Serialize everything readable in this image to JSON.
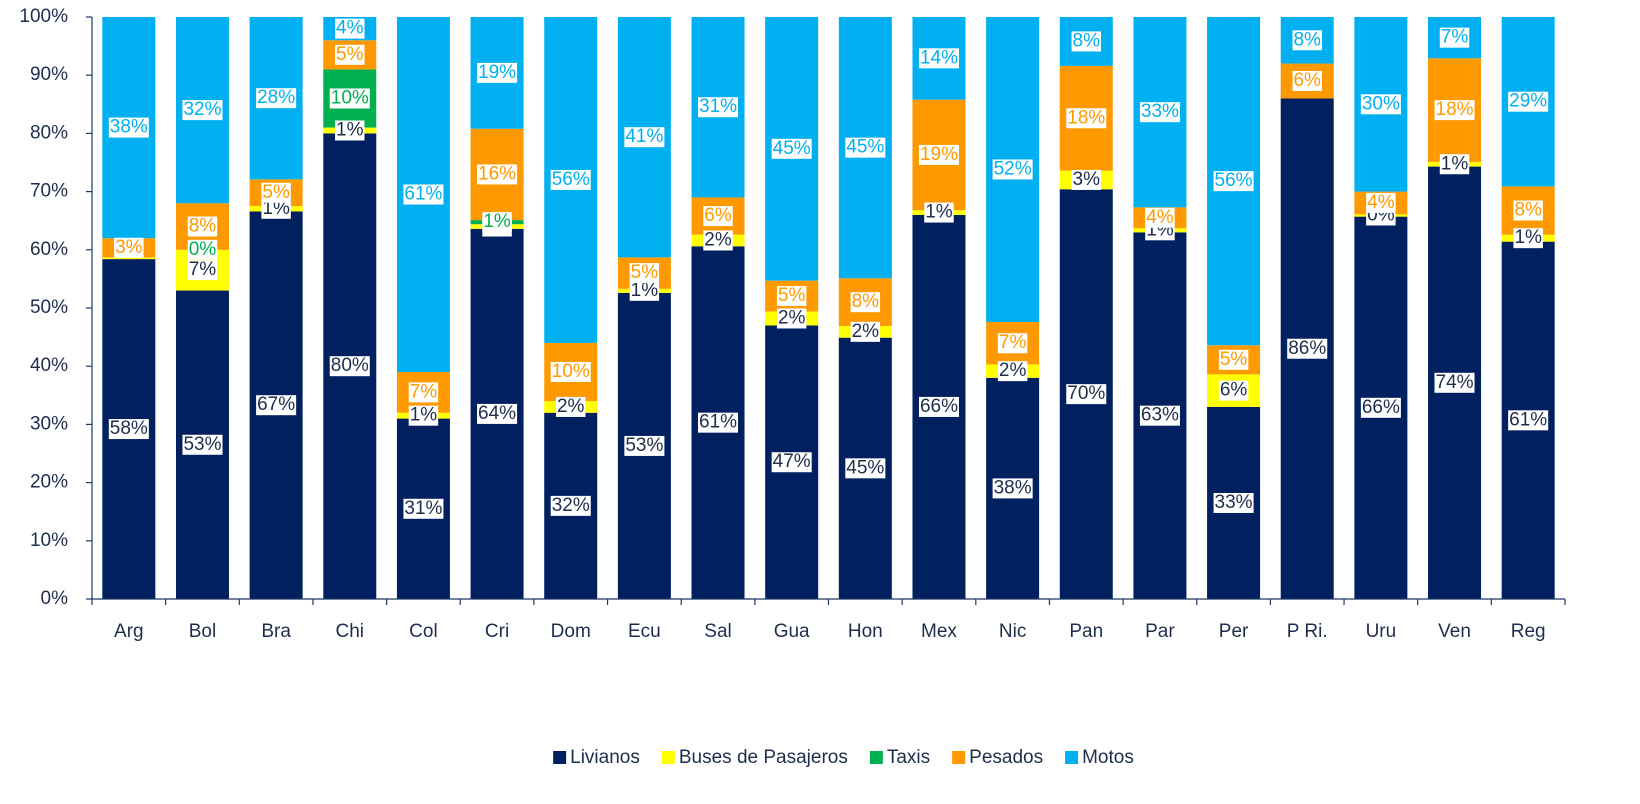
{
  "chart_data": {
    "type": "stacked_bar",
    "categories": [
      "Arg",
      "Bol",
      "Bra",
      "Chi",
      "Col",
      "Cri",
      "Dom",
      "Ecu",
      "Sal",
      "Gua",
      "Hon",
      "Mex",
      "Nic",
      "Pan",
      "Par",
      "Per",
      "P Ri.",
      "Uru",
      "Ven",
      "Reg"
    ],
    "series": [
      {
        "name": "Livianos",
        "color": "#002060",
        "values": [
          58.4,
          53,
          66.6,
          80,
          31,
          63.6,
          32,
          52.6,
          60.6,
          47,
          44.9,
          66,
          38,
          70.4,
          63,
          33,
          86,
          65.7,
          74.3,
          61.4
        ],
        "value_labels": [
          "58%",
          "53%",
          "67%",
          "80%",
          "31%",
          "64%",
          "32%",
          "53%",
          "61%",
          "47%",
          "45%",
          "66%",
          "38%",
          "70%",
          "63%",
          "33%",
          "86%",
          "66%",
          "74%",
          "61%"
        ]
      },
      {
        "name": "Buses de Pasajeros",
        "color": "#ffff00",
        "values": [
          0.3,
          7,
          0.9,
          1,
          1,
          0.8,
          2,
          0.7,
          2,
          2.4,
          2,
          0.8,
          2.3,
          3.2,
          0.7,
          5.6,
          0,
          0.4,
          0.8,
          1.2
        ],
        "value_labels": [
          null,
          "7%",
          "1%",
          "1%",
          "1%",
          "1%",
          "2%",
          "1%",
          "2%",
          "2%",
          "2%",
          "1%",
          "2%",
          "3%",
          "1%",
          "6%",
          null,
          "0%",
          "1%",
          "1%"
        ]
      },
      {
        "name": "Taxis",
        "color": "#00b050",
        "values": [
          0,
          0,
          0,
          10,
          0,
          0.7,
          0,
          0,
          0,
          0,
          0,
          0,
          0,
          0,
          0,
          0,
          0,
          0,
          0,
          0
        ],
        "value_labels": [
          null,
          "0%",
          null,
          "10%",
          null,
          "1%",
          null,
          null,
          null,
          null,
          null,
          null,
          null,
          null,
          null,
          null,
          null,
          null,
          null,
          null
        ]
      },
      {
        "name": "Pesados",
        "color": "#ff9900",
        "values": [
          3.3,
          8,
          4.6,
          5,
          7,
          15.7,
          10,
          5.4,
          6.4,
          5.3,
          8.2,
          19,
          7.3,
          18,
          3.6,
          5,
          6,
          3.9,
          17.8,
          8.3
        ],
        "value_labels": [
          "3%",
          "8%",
          "5%",
          "5%",
          "7%",
          "16%",
          "10%",
          "5%",
          "6%",
          "5%",
          "8%",
          "19%",
          "7%",
          "18%",
          "4%",
          "5%",
          "6%",
          "4%",
          "18%",
          "8%"
        ]
      },
      {
        "name": "Motos",
        "color": "#00b0f0",
        "values": [
          38,
          32,
          27.9,
          4,
          61,
          19.2,
          56,
          41.3,
          31,
          45.3,
          44.9,
          14.2,
          52.4,
          8.4,
          32.7,
          56.4,
          8,
          30,
          7.1,
          29.1
        ],
        "value_labels": [
          "38%",
          "32%",
          "28%",
          "4%",
          "61%",
          "19%",
          "56%",
          "41%",
          "31%",
          "45%",
          "45%",
          "14%",
          "52%",
          "8%",
          "33%",
          "56%",
          "8%",
          "30%",
          "7%",
          "29%"
        ]
      }
    ],
    "ylim": [
      0,
      100
    ],
    "yticks": [
      {
        "value": 0,
        "label": "0%"
      },
      {
        "value": 10,
        "label": "10%"
      },
      {
        "value": 20,
        "label": "20%"
      },
      {
        "value": 30,
        "label": "30%"
      },
      {
        "value": 40,
        "label": "40%"
      },
      {
        "value": 50,
        "label": "50%"
      },
      {
        "value": 60,
        "label": "60%"
      },
      {
        "value": 70,
        "label": "70%"
      },
      {
        "value": 80,
        "label": "80%"
      },
      {
        "value": 90,
        "label": "90%"
      },
      {
        "value": 100,
        "label": "100%"
      }
    ],
    "legend": "bottom"
  }
}
